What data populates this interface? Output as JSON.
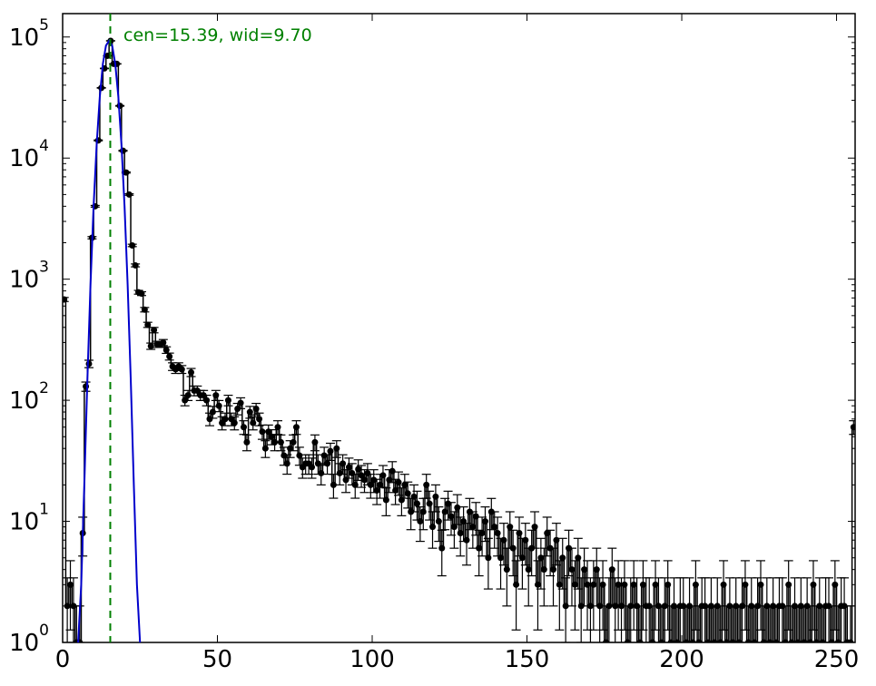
{
  "chart_data": {
    "type": "histogram",
    "bins": [
      0,
      1,
      2,
      3,
      4,
      5,
      6,
      7,
      8,
      9,
      10,
      11,
      12,
      13,
      14,
      15,
      16,
      17,
      18,
      19,
      20,
      21,
      22,
      23,
      24,
      25,
      26,
      27,
      28,
      29,
      30,
      31,
      32,
      33,
      34,
      35,
      36,
      37,
      38,
      39,
      40,
      41,
      42,
      43,
      44,
      45,
      46,
      47,
      48,
      49,
      50,
      51,
      52,
      53,
      54,
      55,
      56,
      57,
      58,
      59,
      60,
      61,
      62,
      63,
      64,
      65,
      66,
      67,
      68,
      69,
      70,
      71,
      72,
      73,
      74,
      75,
      76,
      77,
      78,
      79,
      80,
      81,
      82,
      83,
      84,
      85,
      86,
      87,
      88,
      89,
      90,
      91,
      92,
      93,
      94,
      95,
      96,
      97,
      98,
      99,
      100,
      101,
      102,
      103,
      104,
      105,
      106,
      107,
      108,
      109,
      110,
      111,
      112,
      113,
      114,
      115,
      116,
      117,
      118,
      119,
      120,
      121,
      122,
      123,
      124,
      125,
      126,
      127,
      128,
      129,
      130,
      131,
      132,
      133,
      134,
      135,
      136,
      137,
      138,
      139,
      140,
      141,
      142,
      143,
      144,
      145,
      146,
      147,
      148,
      149,
      150,
      151,
      152,
      153,
      154,
      155,
      156,
      157,
      158,
      159,
      160,
      161,
      162,
      163,
      164,
      165,
      166,
      167,
      168,
      169,
      170,
      171,
      172,
      173,
      174,
      175,
      176,
      177,
      178,
      179,
      180,
      181,
      182,
      183,
      184,
      185,
      186,
      187,
      188,
      189,
      190,
      191,
      192,
      193,
      194,
      195,
      196,
      197,
      198,
      199,
      200,
      201,
      202,
      203,
      204,
      205,
      206,
      207,
      208,
      209,
      210,
      211,
      212,
      213,
      214,
      215,
      216,
      217,
      218,
      219,
      220,
      221,
      222,
      223,
      224,
      225,
      226,
      227,
      228,
      229,
      230,
      231,
      232,
      233,
      234,
      235,
      236,
      237,
      238,
      239,
      240,
      241,
      242,
      243,
      244,
      245,
      246,
      247,
      248,
      249,
      250,
      251,
      252,
      253,
      254,
      255,
      256
    ],
    "values": [
      680,
      2,
      3,
      2,
      1,
      1,
      8,
      130,
      200,
      2200,
      4000,
      14000,
      38000,
      55000,
      70000,
      93000,
      60000,
      60000,
      27000,
      11500,
      7600,
      5000,
      1900,
      1300,
      780,
      760,
      560,
      420,
      280,
      380,
      290,
      290,
      300,
      260,
      230,
      190,
      180,
      190,
      180,
      100,
      110,
      170,
      120,
      120,
      110,
      110,
      100,
      70,
      80,
      110,
      90,
      65,
      70,
      100,
      70,
      65,
      85,
      95,
      60,
      45,
      80,
      65,
      85,
      70,
      55,
      40,
      55,
      50,
      45,
      60,
      45,
      35,
      30,
      40,
      45,
      60,
      35,
      28,
      30,
      30,
      28,
      45,
      30,
      25,
      35,
      30,
      38,
      20,
      40,
      25,
      30,
      22,
      28,
      25,
      20,
      27,
      24,
      22,
      25,
      20,
      22,
      18,
      20,
      24,
      15,
      22,
      26,
      18,
      21,
      15,
      20,
      17,
      12,
      16,
      14,
      10,
      12,
      20,
      14,
      9,
      16,
      10,
      6,
      12,
      14,
      11,
      9,
      13,
      8,
      10,
      7,
      12,
      9,
      11,
      6,
      8,
      10,
      5,
      12,
      9,
      8,
      5,
      7,
      4,
      9,
      6,
      3,
      8,
      5,
      7,
      4,
      6,
      9,
      3,
      5,
      4,
      8,
      6,
      4,
      7,
      3,
      5,
      2,
      6,
      4,
      3,
      5,
      2,
      4,
      3,
      2,
      3,
      4,
      2,
      3,
      1,
      2,
      4,
      2,
      3,
      2,
      3,
      1,
      2,
      3,
      2,
      1,
      3,
      2,
      2,
      1,
      3,
      2,
      1,
      2,
      3,
      1,
      2,
      1,
      2,
      2,
      1,
      2,
      1,
      3,
      1,
      2,
      2,
      1,
      2,
      1,
      2,
      1,
      3,
      1,
      2,
      1,
      2,
      1,
      2,
      3,
      1,
      2,
      1,
      2,
      3,
      1,
      2,
      1,
      2,
      1,
      2,
      2,
      1,
      3,
      1,
      2,
      1,
      2,
      1,
      2,
      1,
      3,
      1,
      2,
      1,
      2,
      2,
      1,
      3,
      1,
      2,
      2,
      1,
      1,
      60
    ],
    "color": "#000000",
    "errorbars": "poisson",
    "fit": {
      "x": [
        5,
        6,
        7,
        8,
        9,
        10,
        11,
        12,
        13,
        14,
        15,
        16,
        17,
        18,
        19,
        20,
        21,
        22,
        23,
        24,
        25
      ],
      "values": [
        1,
        3,
        20,
        150,
        900,
        4000,
        13000,
        32000,
        60000,
        85000,
        93000,
        85000,
        60000,
        32000,
        13000,
        4000,
        900,
        150,
        20,
        3,
        1
      ],
      "color": "#0000cc"
    },
    "vline": {
      "value": 15.39,
      "color": "#008000"
    },
    "annotation": "cen=15.39, wid=9.70",
    "xlim": [
      0,
      256
    ],
    "xticks": [
      0,
      50,
      100,
      150,
      200,
      250
    ],
    "ylim": [
      1,
      156000
    ],
    "log_y": true,
    "yticks": [
      {
        "value": 1,
        "label": "10^0"
      },
      {
        "value": 10,
        "label": "10^1"
      },
      {
        "value": 100,
        "label": "10^2"
      },
      {
        "value": 1000,
        "label": "10^3"
      },
      {
        "value": 10000,
        "label": "10^4"
      },
      {
        "value": 100000,
        "label": "10^5"
      }
    ]
  }
}
